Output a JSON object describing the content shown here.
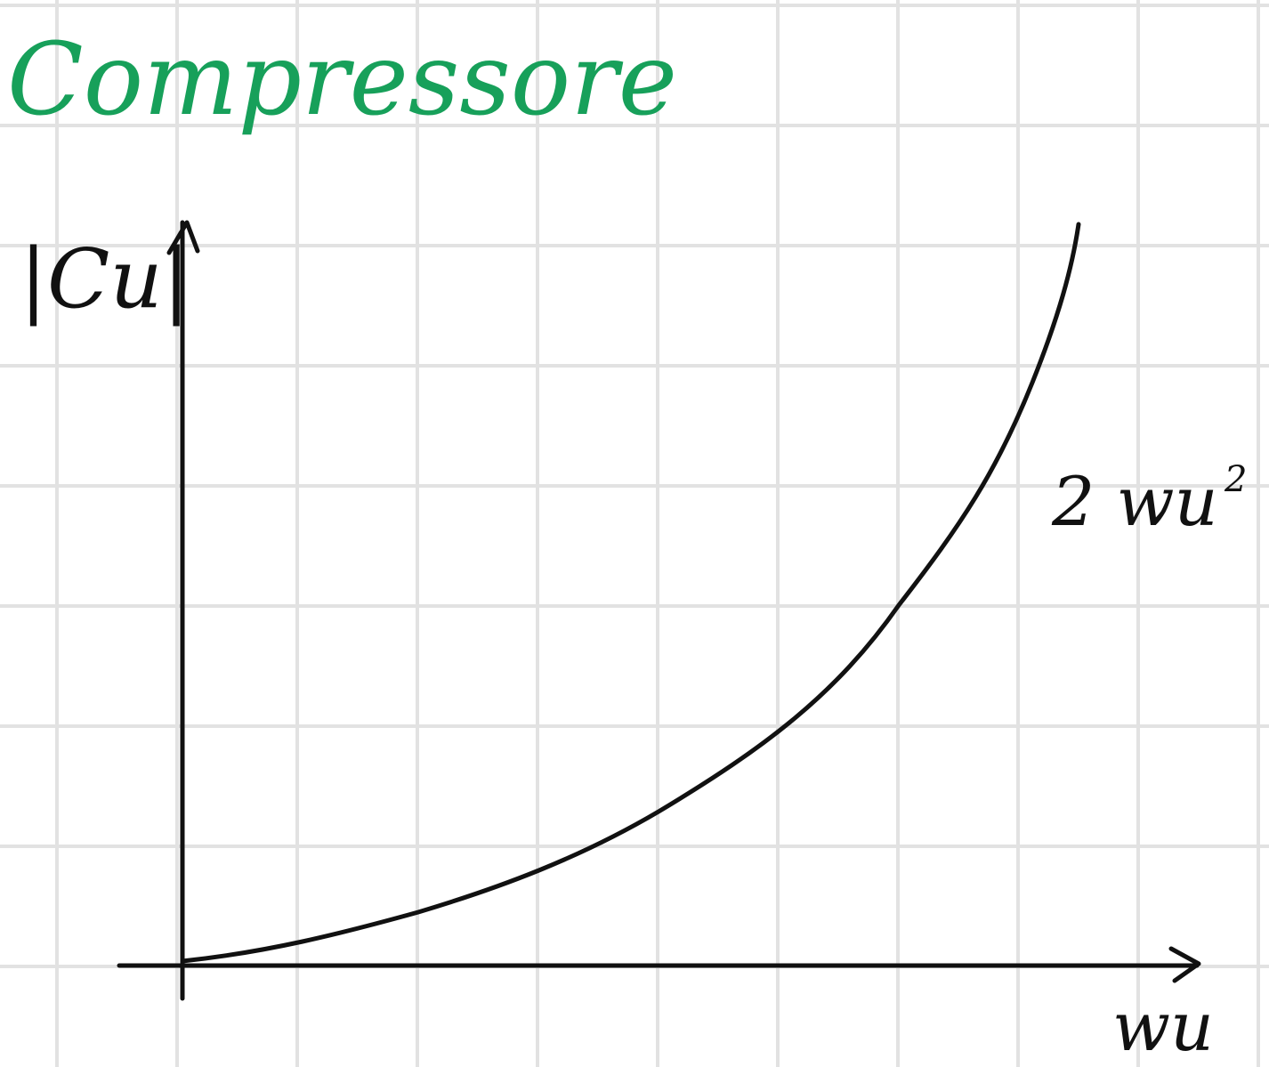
{
  "title": "Compressore",
  "colors": {
    "background": "#ffffff",
    "grid": "#e2e2e2",
    "ink": "#111111",
    "title": "#17a05a"
  },
  "axes": {
    "y_label": "|Cu|",
    "x_label": "wu"
  },
  "curve": {
    "label": "2 wu",
    "label_exponent": "2",
    "shape": "quadratic-like increasing curve"
  }
}
